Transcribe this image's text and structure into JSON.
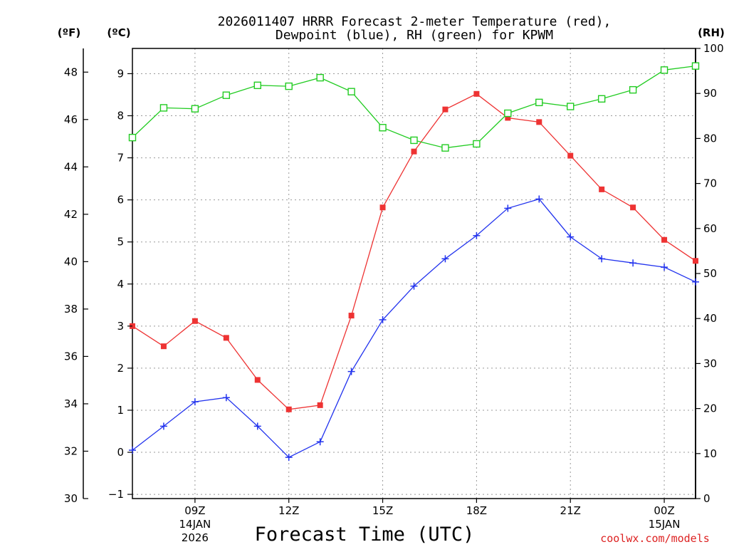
{
  "chart_data": {
    "type": "line",
    "title_lines": [
      "2026011407 HRRR Forecast 2-meter Temperature (red),",
      "Dewpoint (blue), RH (green) for KPWM"
    ],
    "xlabel": "Forecast Time (UTC)",
    "credit": "coolwx.com/models",
    "axis_units": {
      "fahrenheit": "(ºF)",
      "celsius": "(ºC)",
      "rh": "(RH)"
    },
    "x_hours": [
      7,
      8,
      9,
      10,
      11,
      12,
      13,
      14,
      15,
      16,
      17,
      18,
      19,
      20,
      21,
      22,
      23,
      24,
      25
    ],
    "x_range": [
      7,
      25
    ],
    "x_ticks": [
      {
        "hour": 9,
        "label": "09Z",
        "sub1": "14JAN",
        "sub2": "2026"
      },
      {
        "hour": 12,
        "label": "12Z"
      },
      {
        "hour": 15,
        "label": "15Z"
      },
      {
        "hour": 18,
        "label": "18Z"
      },
      {
        "hour": 21,
        "label": "21Z"
      },
      {
        "hour": 24,
        "label": "00Z",
        "sub1": "15JAN"
      }
    ],
    "celsius_axis": {
      "range": [
        -1.1,
        9.6
      ],
      "ticks": [
        -1,
        0,
        1,
        2,
        3,
        4,
        5,
        6,
        7,
        8,
        9
      ]
    },
    "fahrenheit_axis": {
      "range": [
        30,
        49
      ],
      "ticks": [
        30,
        32,
        34,
        36,
        38,
        40,
        42,
        44,
        46,
        48
      ]
    },
    "rh_axis": {
      "range": [
        0,
        100
      ],
      "ticks": [
        0,
        10,
        20,
        30,
        40,
        50,
        60,
        70,
        80,
        90,
        100
      ]
    },
    "series": [
      {
        "name": "Temperature",
        "axis": "celsius",
        "color": "#ee3333",
        "marker": "filled-square",
        "values": [
          3.0,
          2.52,
          3.12,
          2.72,
          1.72,
          1.02,
          1.12,
          3.25,
          5.82,
          7.15,
          8.15,
          8.52,
          7.95,
          7.85,
          7.05,
          6.25,
          5.82,
          5.05,
          4.55
        ]
      },
      {
        "name": "Dewpoint",
        "axis": "celsius",
        "color": "#2233ee",
        "marker": "plus",
        "values": [
          0.05,
          0.62,
          1.2,
          1.3,
          0.62,
          -0.12,
          0.25,
          1.92,
          3.15,
          3.95,
          4.6,
          5.15,
          5.8,
          6.02,
          5.12,
          4.6,
          4.5,
          4.4,
          4.05
        ]
      },
      {
        "name": "RH",
        "axis": "rh",
        "color": "#22cc22",
        "marker": "open-square",
        "values": [
          80.2,
          86.8,
          86.6,
          89.6,
          91.8,
          91.6,
          93.5,
          90.4,
          82.4,
          79.6,
          77.9,
          78.8,
          85.6,
          88.0,
          87.1,
          88.8,
          90.8,
          95.2,
          96.1
        ]
      }
    ]
  }
}
